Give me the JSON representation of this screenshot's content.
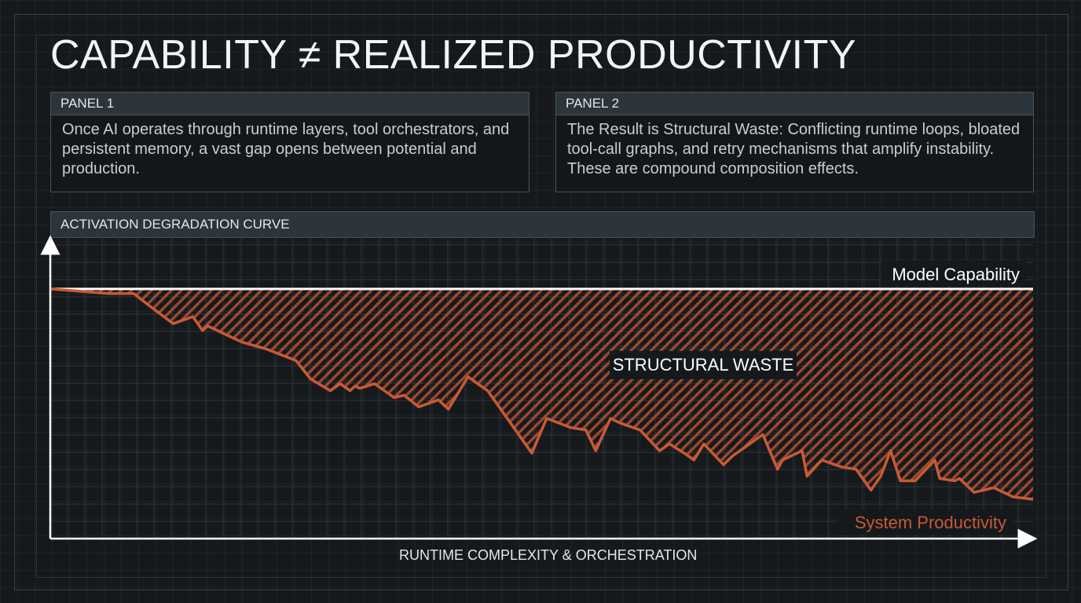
{
  "title": "CAPABILITY ≠ REALIZED PRODUCTIVITY",
  "panels": [
    {
      "heading": "PANEL 1",
      "text": "Once AI operates through runtime layers, tool orchestrators, and persistent memory, a vast gap opens between potential and production."
    },
    {
      "heading": "PANEL 2",
      "text": "The Result is Structural Waste: Conflicting runtime loops, bloated tool-call graphs, and retry mechanisms that amplify instability. These are compound composition effects."
    }
  ],
  "colors": {
    "accent": "#c85a36",
    "capability_line": "#ffffff",
    "background": "#16191c"
  },
  "chart_data": {
    "type": "line",
    "panel_title": "ACTIVATION DEGRADATION CURVE",
    "xlabel": "RUNTIME COMPLEXITY & ORCHESTRATION",
    "ylabel": "",
    "xlim": [
      0,
      100
    ],
    "ylim": [
      0,
      100
    ],
    "grid": true,
    "annotation": "STRUCTURAL WASTE",
    "series": [
      {
        "name": "Model Capability",
        "x": [
          0,
          100
        ],
        "y": [
          100,
          100
        ]
      },
      {
        "name": "System Productivity",
        "x": [
          0,
          3,
          6,
          8.5,
          10,
          12.5,
          14.5,
          15.5,
          16,
          17.5,
          19.5,
          22,
          25,
          26.5,
          28.5,
          29.5,
          30.5,
          31,
          31.5,
          33,
          35,
          36,
          37.5,
          39.5,
          40.5,
          42.5,
          44.5,
          49,
          50.5,
          53,
          54.5,
          55.5,
          57,
          58,
          60,
          62,
          63,
          64.5,
          65.5,
          66.5,
          68.5,
          69.5,
          70.5,
          72.5,
          74,
          74.5,
          76.5,
          77,
          78.5,
          80.5,
          82,
          83.5,
          84.5,
          85.5,
          86.5,
          88,
          90,
          90.5,
          92,
          92.5,
          94,
          96,
          98,
          100
        ],
        "y": [
          100,
          99,
          98,
          98,
          93,
          85,
          88,
          82,
          84,
          81,
          77,
          74,
          69,
          61,
          56,
          59,
          56,
          58,
          57,
          59,
          53,
          54,
          49,
          52,
          48,
          62,
          56,
          29,
          44,
          40,
          39,
          30,
          44,
          42,
          39,
          30,
          33,
          29,
          26,
          33,
          24,
          28,
          31,
          37,
          22,
          26,
          30,
          19,
          26,
          23,
          22,
          13,
          19,
          30,
          17,
          17,
          26,
          18,
          17,
          18,
          12,
          14,
          10,
          9
        ]
      }
    ]
  }
}
